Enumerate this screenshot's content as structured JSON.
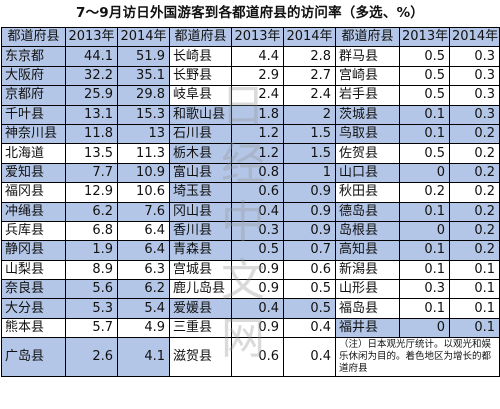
{
  "title": "7～9月访日外国游客到各都道府县的访问率（多选、%）",
  "headers": [
    "都道府县",
    "2013年",
    "2014年",
    "都道府县",
    "2013年",
    "2014年",
    "都道府县",
    "2013年",
    "2014年"
  ],
  "rows": [
    [
      {
        "n": "东京都",
        "a": "44.1",
        "b": "51.9",
        "h": 1
      },
      {
        "n": "长崎县",
        "a": "4.4",
        "b": "2.8",
        "h": 0
      },
      {
        "n": "群马县",
        "a": "0.5",
        "b": "0.3",
        "h": 0
      }
    ],
    [
      {
        "n": "大阪府",
        "a": "32.2",
        "b": "35.1",
        "h": 1
      },
      {
        "n": "长野县",
        "a": "2.9",
        "b": "2.7",
        "h": 0
      },
      {
        "n": "宫崎县",
        "a": "0.5",
        "b": "0.3",
        "h": 0
      }
    ],
    [
      {
        "n": "京都府",
        "a": "25.9",
        "b": "29.8",
        "h": 1
      },
      {
        "n": "岐阜县",
        "a": "2.4",
        "b": "2.4",
        "h": 0
      },
      {
        "n": "岩手县",
        "a": "0.5",
        "b": "0.3",
        "h": 0
      }
    ],
    [
      {
        "n": "千叶县",
        "a": "13.1",
        "b": "15.3",
        "h": 1
      },
      {
        "n": "和歌山县",
        "a": "1.8",
        "b": "2",
        "h": 1
      },
      {
        "n": "茨城县",
        "a": "0.1",
        "b": "0.3",
        "h": 1
      }
    ],
    [
      {
        "n": "神奈川县",
        "a": "11.8",
        "b": "13",
        "h": 1
      },
      {
        "n": "石川县",
        "a": "1.2",
        "b": "1.5",
        "h": 1
      },
      {
        "n": "鸟取县",
        "a": "0.1",
        "b": "0.2",
        "h": 1
      }
    ],
    [
      {
        "n": "北海道",
        "a": "13.5",
        "b": "11.3",
        "h": 0
      },
      {
        "n": "栃木县",
        "a": "1.2",
        "b": "1.5",
        "h": 1
      },
      {
        "n": "佐贺县",
        "a": "0.5",
        "b": "0.2",
        "h": 0
      }
    ],
    [
      {
        "n": "爱知县",
        "a": "7.7",
        "b": "10.9",
        "h": 1
      },
      {
        "n": "富山县",
        "a": "0.8",
        "b": "1",
        "h": 1
      },
      {
        "n": "山口县",
        "a": "0",
        "b": "0.2",
        "h": 1
      }
    ],
    [
      {
        "n": "福冈县",
        "a": "12.9",
        "b": "10.6",
        "h": 0
      },
      {
        "n": "埼玉县",
        "a": "0.6",
        "b": "0.9",
        "h": 1
      },
      {
        "n": "秋田县",
        "a": "0.2",
        "b": "0.2",
        "h": 0
      }
    ],
    [
      {
        "n": "冲绳县",
        "a": "6.2",
        "b": "7.6",
        "h": 1
      },
      {
        "n": "冈山县",
        "a": "0.4",
        "b": "0.9",
        "h": 1
      },
      {
        "n": "德岛县",
        "a": "0.1",
        "b": "0.2",
        "h": 1
      }
    ],
    [
      {
        "n": "兵库县",
        "a": "6.8",
        "b": "6.4",
        "h": 0
      },
      {
        "n": "香川县",
        "a": "0.3",
        "b": "0.9",
        "h": 1
      },
      {
        "n": "岛根县",
        "a": "0",
        "b": "0.2",
        "h": 1
      }
    ],
    [
      {
        "n": "静冈县",
        "a": "1.9",
        "b": "6.4",
        "h": 1
      },
      {
        "n": "青森县",
        "a": "0.5",
        "b": "0.7",
        "h": 1
      },
      {
        "n": "高知县",
        "a": "0.1",
        "b": "0.2",
        "h": 1
      }
    ],
    [
      {
        "n": "山梨县",
        "a": "8.9",
        "b": "6.3",
        "h": 0
      },
      {
        "n": "宫城县",
        "a": "0.9",
        "b": "0.6",
        "h": 0
      },
      {
        "n": "新潟县",
        "a": "0.1",
        "b": "0.1",
        "h": 0
      }
    ],
    [
      {
        "n": "奈良县",
        "a": "5.6",
        "b": "6.2",
        "h": 1
      },
      {
        "n": "鹿儿岛县",
        "a": "0.9",
        "b": "0.5",
        "h": 0
      },
      {
        "n": "山形县",
        "a": "0.3",
        "b": "0.1",
        "h": 0
      }
    ],
    [
      {
        "n": "大分县",
        "a": "5.3",
        "b": "5.4",
        "h": 1
      },
      {
        "n": "爱媛县",
        "a": "0.4",
        "b": "0.5",
        "h": 1
      },
      {
        "n": "福岛县",
        "a": "0.1",
        "b": "0.1",
        "h": 0
      }
    ],
    [
      {
        "n": "熊本县",
        "a": "5.7",
        "b": "4.9",
        "h": 0
      },
      {
        "n": "三重县",
        "a": "0.9",
        "b": "0.4",
        "h": 0
      },
      {
        "n": "福井县",
        "a": "0",
        "b": "0.1",
        "h": 1
      }
    ]
  ],
  "last_row": {
    "a": {
      "n": "广岛县",
      "a": "2.6",
      "b": "4.1",
      "h": 1
    },
    "b": {
      "n": "滋贺县",
      "a": "0.6",
      "b": "0.4",
      "h": 0
    }
  },
  "note": "（注）日本观光厅统计。以观光和娱乐休闲为目的。着色地区为增长的都道府县",
  "watermark": [
    "日",
    "经",
    "中",
    "文",
    "网"
  ],
  "colors": {
    "highlight": "#b4c6e7",
    "border": "#000000"
  }
}
